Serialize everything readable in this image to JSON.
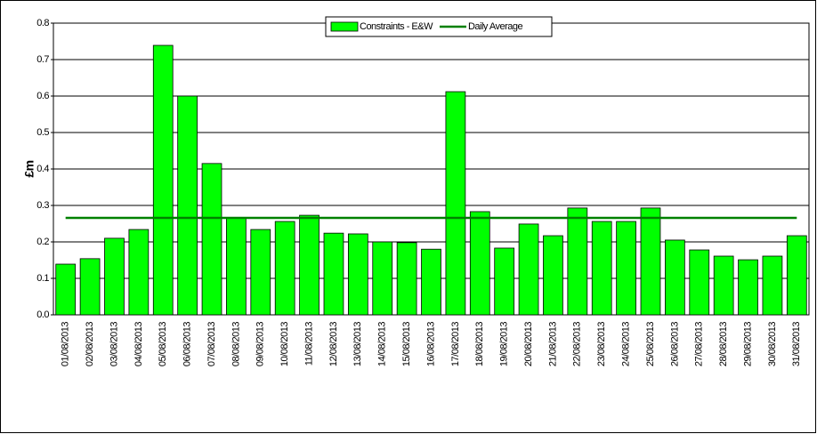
{
  "chart_data": {
    "type": "bar",
    "ylabel": "£m",
    "categories": [
      "01/08/2013",
      "02/08/2013",
      "03/08/2013",
      "04/08/2013",
      "05/08/2013",
      "06/08/2013",
      "07/08/2013",
      "08/08/2013",
      "09/08/2013",
      "10/08/2013",
      "11/08/2013",
      "12/08/2013",
      "13/08/2013",
      "14/08/2013",
      "15/08/2013",
      "16/08/2013",
      "17/08/2013",
      "18/08/2013",
      "19/08/2013",
      "20/08/2013",
      "21/08/2013",
      "22/08/2013",
      "23/08/2013",
      "24/08/2013",
      "25/08/2013",
      "26/08/2013",
      "27/08/2013",
      "28/08/2013",
      "29/08/2013",
      "30/08/2013",
      "31/08/2013"
    ],
    "series": [
      {
        "name": "Constraints - E&W",
        "color": "#00ff00",
        "type": "bar",
        "values": [
          0.139,
          0.154,
          0.21,
          0.234,
          0.739,
          0.6,
          0.415,
          0.266,
          0.234,
          0.256,
          0.273,
          0.224,
          0.222,
          0.2,
          0.198,
          0.18,
          0.612,
          0.283,
          0.183,
          0.249,
          0.217,
          0.293,
          0.256,
          0.256,
          0.293,
          0.205,
          0.178,
          0.161,
          0.151,
          0.161,
          0.217
        ]
      },
      {
        "name": "Daily Average",
        "color": "#008000",
        "type": "line",
        "values": [
          0.266,
          0.266,
          0.266,
          0.266,
          0.266,
          0.266,
          0.266,
          0.266,
          0.266,
          0.266,
          0.266,
          0.266,
          0.266,
          0.266,
          0.266,
          0.266,
          0.266,
          0.266,
          0.266,
          0.266,
          0.266,
          0.266,
          0.266,
          0.266,
          0.266,
          0.266,
          0.266,
          0.266,
          0.266,
          0.266,
          0.266
        ]
      }
    ],
    "ylim": [
      0,
      0.8
    ],
    "yticks": [
      {
        "value": 0,
        "label": "0.0"
      },
      0.1,
      0.2,
      0.3,
      0.4,
      0.5,
      0.6,
      0.7,
      0.8
    ],
    "grid": true,
    "legend": "top"
  }
}
